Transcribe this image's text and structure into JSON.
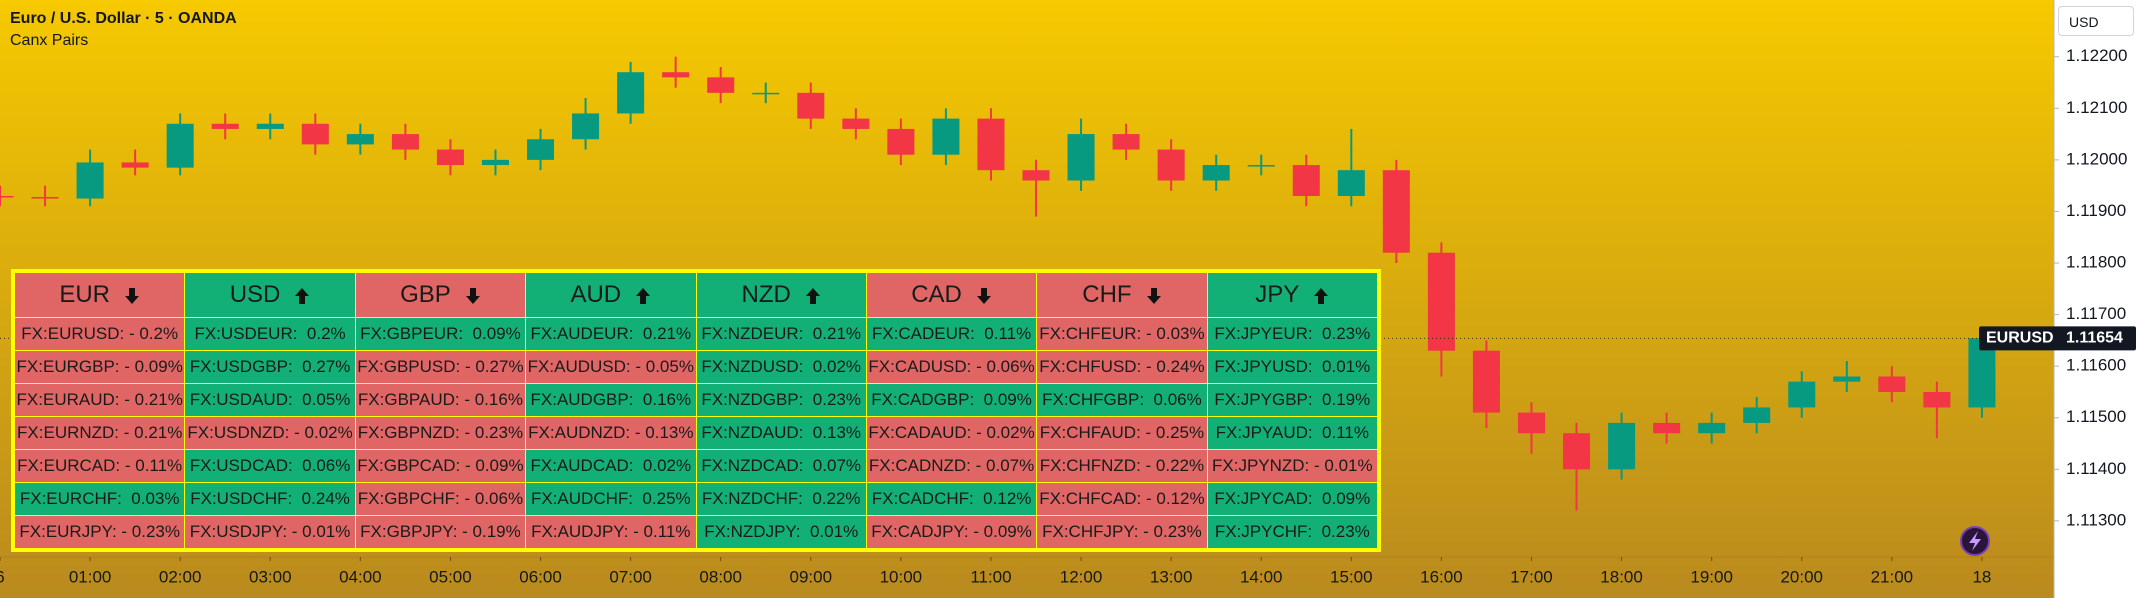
{
  "header": {
    "title": "Euro / U.S. Dollar · 5 · OANDA",
    "indicator": "Canx Pairs"
  },
  "currency_button": "USD",
  "chart_data": {
    "type": "candlestick",
    "x": [
      0,
      0.5,
      1,
      1.5,
      2,
      2.5,
      3,
      3.5,
      4,
      4.5,
      5,
      5.5,
      6,
      6.5,
      7,
      7.5,
      8,
      8.5,
      9,
      9.5,
      10,
      10.5,
      11,
      11.5,
      12,
      12.5,
      13,
      13.5,
      14,
      14.5,
      15,
      15.5,
      16,
      16.5,
      17,
      17.5,
      18,
      18.5,
      19,
      19.5,
      20,
      20.5,
      21,
      21.5,
      22
    ],
    "open": [
      1.1193,
      1.11928,
      1.11925,
      1.11995,
      1.11985,
      1.1207,
      1.1206,
      1.1207,
      1.1203,
      1.1205,
      1.1202,
      1.1199,
      1.12,
      1.1204,
      1.1209,
      1.1217,
      1.1216,
      1.1213,
      1.1213,
      1.1208,
      1.1206,
      1.1201,
      1.1208,
      1.1198,
      1.1196,
      1.1205,
      1.1202,
      1.1196,
      1.1199,
      1.1199,
      1.1193,
      1.1198,
      1.1182,
      1.1163,
      1.1151,
      1.1147,
      1.114,
      1.1149,
      1.1147,
      1.1149,
      1.1152,
      1.1157,
      1.1158,
      1.1155,
      1.1152
    ],
    "high": [
      1.1195,
      1.1195,
      1.1202,
      1.1202,
      1.1209,
      1.1209,
      1.1209,
      1.1209,
      1.1207,
      1.1207,
      1.1204,
      1.1202,
      1.1206,
      1.1212,
      1.1219,
      1.122,
      1.1218,
      1.1215,
      1.1215,
      1.121,
      1.1208,
      1.121,
      1.121,
      1.12,
      1.1208,
      1.1207,
      1.1204,
      1.1201,
      1.1201,
      1.1201,
      1.1206,
      1.12,
      1.1184,
      1.1165,
      1.1153,
      1.1149,
      1.1151,
      1.1151,
      1.1151,
      1.1154,
      1.1159,
      1.1161,
      1.116,
      1.1157,
      1.1167
    ],
    "low": [
      1.1191,
      1.1191,
      1.1191,
      1.1197,
      1.1197,
      1.1204,
      1.1204,
      1.1201,
      1.1201,
      1.12,
      1.1197,
      1.1197,
      1.1198,
      1.1202,
      1.1207,
      1.1214,
      1.1211,
      1.1211,
      1.1206,
      1.1204,
      1.1199,
      1.1199,
      1.1196,
      1.1189,
      1.1194,
      1.12,
      1.1194,
      1.1194,
      1.1197,
      1.1191,
      1.1191,
      1.118,
      1.1158,
      1.1148,
      1.1143,
      1.1132,
      1.1138,
      1.1145,
      1.1145,
      1.1147,
      1.115,
      1.1155,
      1.1153,
      1.1146,
      1.115
    ],
    "close": [
      1.11928,
      1.11925,
      1.11995,
      1.11985,
      1.1207,
      1.1206,
      1.1207,
      1.1203,
      1.1205,
      1.1202,
      1.1199,
      1.12,
      1.1204,
      1.1209,
      1.1217,
      1.1216,
      1.1213,
      1.1213,
      1.1208,
      1.1206,
      1.1201,
      1.1208,
      1.1198,
      1.1196,
      1.1205,
      1.1202,
      1.1196,
      1.1199,
      1.1199,
      1.1193,
      1.1198,
      1.1182,
      1.1163,
      1.1151,
      1.1147,
      1.114,
      1.1149,
      1.1147,
      1.1149,
      1.1152,
      1.1157,
      1.1158,
      1.1155,
      1.1152,
      1.11654
    ],
    "up_color": "#089981",
    "down_color": "#f23645",
    "xlim": [
      0,
      22.8
    ],
    "ylim": [
      1.1123,
      1.1231
    ],
    "xticks": [
      {
        "value": 0,
        "label": "6"
      },
      {
        "value": 1,
        "label": "01:00"
      },
      {
        "value": 2,
        "label": "02:00"
      },
      {
        "value": 3,
        "label": "03:00"
      },
      {
        "value": 4,
        "label": "04:00"
      },
      {
        "value": 5,
        "label": "05:00"
      },
      {
        "value": 6,
        "label": "06:00"
      },
      {
        "value": 7,
        "label": "07:00"
      },
      {
        "value": 8,
        "label": "08:00"
      },
      {
        "value": 9,
        "label": "09:00"
      },
      {
        "value": 10,
        "label": "10:00"
      },
      {
        "value": 11,
        "label": "11:00"
      },
      {
        "value": 12,
        "label": "12:00"
      },
      {
        "value": 13,
        "label": "13:00"
      },
      {
        "value": 14,
        "label": "14:00"
      },
      {
        "value": 15,
        "label": "15:00"
      },
      {
        "value": 16,
        "label": "16:00"
      },
      {
        "value": 17,
        "label": "17:00"
      },
      {
        "value": 18,
        "label": "18:00"
      },
      {
        "value": 19,
        "label": "19:00"
      },
      {
        "value": 20,
        "label": "20:00"
      },
      {
        "value": 21,
        "label": "21:00"
      },
      {
        "value": 22,
        "label": "18"
      }
    ],
    "yticks": [
      {
        "value": 1.122,
        "label": "1.12200"
      },
      {
        "value": 1.121,
        "label": "1.12100"
      },
      {
        "value": 1.12,
        "label": "1.12000"
      },
      {
        "value": 1.119,
        "label": "1.11900"
      },
      {
        "value": 1.118,
        "label": "1.11800"
      },
      {
        "value": 1.117,
        "label": "1.11700"
      },
      {
        "value": 1.116,
        "label": "1.11600"
      },
      {
        "value": 1.115,
        "label": "1.11500"
      },
      {
        "value": 1.114,
        "label": "1.11400"
      },
      {
        "value": 1.113,
        "label": "1.11300"
      }
    ],
    "last_price": {
      "symbol": "EURUSD",
      "value": 1.11654
    }
  },
  "table": {
    "columns": [
      {
        "currency": "EUR",
        "direction": "down",
        "color": "#e06666",
        "cells": [
          {
            "text": "FX:EURUSD: - 0.2%",
            "color": "#e06666"
          },
          {
            "text": "FX:EURGBP: - 0.09%",
            "color": "#e06666"
          },
          {
            "text": "FX:EURAUD: - 0.21%",
            "color": "#e06666"
          },
          {
            "text": "FX:EURNZD: - 0.21%",
            "color": "#e06666"
          },
          {
            "text": "FX:EURCAD: - 0.11%",
            "color": "#e06666"
          },
          {
            "text": "FX:EURCHF:  0.03%",
            "color": "#12b077"
          },
          {
            "text": "FX:EURJPY: - 0.23%",
            "color": "#e06666"
          }
        ]
      },
      {
        "currency": "USD",
        "direction": "up",
        "color": "#12b077",
        "cells": [
          {
            "text": "FX:USDEUR:  0.2%",
            "color": "#12b077"
          },
          {
            "text": "FX:USDGBP:  0.27%",
            "color": "#12b077"
          },
          {
            "text": "FX:USDAUD:  0.05%",
            "color": "#12b077"
          },
          {
            "text": "FX:USDNZD: - 0.02%",
            "color": "#e06666"
          },
          {
            "text": "FX:USDCAD:  0.06%",
            "color": "#12b077"
          },
          {
            "text": "FX:USDCHF:  0.24%",
            "color": "#12b077"
          },
          {
            "text": "FX:USDJPY: - 0.01%",
            "color": "#e06666"
          }
        ]
      },
      {
        "currency": "GBP",
        "direction": "down",
        "color": "#e06666",
        "cells": [
          {
            "text": "FX:GBPEUR:  0.09%",
            "color": "#12b077"
          },
          {
            "text": "FX:GBPUSD: - 0.27%",
            "color": "#e06666"
          },
          {
            "text": "FX:GBPAUD: - 0.16%",
            "color": "#e06666"
          },
          {
            "text": "FX:GBPNZD: - 0.23%",
            "color": "#e06666"
          },
          {
            "text": "FX:GBPCAD: - 0.09%",
            "color": "#e06666"
          },
          {
            "text": "FX:GBPCHF: - 0.06%",
            "color": "#e06666"
          },
          {
            "text": "FX:GBPJPY: - 0.19%",
            "color": "#e06666"
          }
        ]
      },
      {
        "currency": "AUD",
        "direction": "up",
        "color": "#12b077",
        "cells": [
          {
            "text": "FX:AUDEUR:  0.21%",
            "color": "#12b077"
          },
          {
            "text": "FX:AUDUSD: - 0.05%",
            "color": "#e06666"
          },
          {
            "text": "FX:AUDGBP:  0.16%",
            "color": "#12b077"
          },
          {
            "text": "FX:AUDNZD: - 0.13%",
            "color": "#e06666"
          },
          {
            "text": "FX:AUDCAD:  0.02%",
            "color": "#12b077"
          },
          {
            "text": "FX:AUDCHF:  0.25%",
            "color": "#12b077"
          },
          {
            "text": "FX:AUDJPY: - 0.11%",
            "color": "#e06666"
          }
        ]
      },
      {
        "currency": "NZD",
        "direction": "up",
        "color": "#12b077",
        "cells": [
          {
            "text": "FX:NZDEUR:  0.21%",
            "color": "#12b077"
          },
          {
            "text": "FX:NZDUSD:  0.02%",
            "color": "#12b077"
          },
          {
            "text": "FX:NZDGBP:  0.23%",
            "color": "#12b077"
          },
          {
            "text": "FX:NZDAUD:  0.13%",
            "color": "#12b077"
          },
          {
            "text": "FX:NZDCAD:  0.07%",
            "color": "#12b077"
          },
          {
            "text": "FX:NZDCHF:  0.22%",
            "color": "#12b077"
          },
          {
            "text": "FX:NZDJPY:  0.01%",
            "color": "#12b077"
          }
        ]
      },
      {
        "currency": "CAD",
        "direction": "down",
        "color": "#e06666",
        "cells": [
          {
            "text": "FX:CADEUR:  0.11%",
            "color": "#12b077"
          },
          {
            "text": "FX:CADUSD: - 0.06%",
            "color": "#e06666"
          },
          {
            "text": "FX:CADGBP:  0.09%",
            "color": "#12b077"
          },
          {
            "text": "FX:CADAUD: - 0.02%",
            "color": "#e06666"
          },
          {
            "text": "FX:CADNZD: - 0.07%",
            "color": "#e06666"
          },
          {
            "text": "FX:CADCHF:  0.12%",
            "color": "#12b077"
          },
          {
            "text": "FX:CADJPY: - 0.09%",
            "color": "#e06666"
          }
        ]
      },
      {
        "currency": "CHF",
        "direction": "down",
        "color": "#e06666",
        "cells": [
          {
            "text": "FX:CHFEUR: - 0.03%",
            "color": "#e06666"
          },
          {
            "text": "FX:CHFUSD: - 0.24%",
            "color": "#e06666"
          },
          {
            "text": "FX:CHFGBP:  0.06%",
            "color": "#12b077"
          },
          {
            "text": "FX:CHFAUD: - 0.25%",
            "color": "#e06666"
          },
          {
            "text": "FX:CHFNZD: - 0.22%",
            "color": "#e06666"
          },
          {
            "text": "FX:CHFCAD: - 0.12%",
            "color": "#e06666"
          },
          {
            "text": "FX:CHFJPY: - 0.23%",
            "color": "#e06666"
          }
        ]
      },
      {
        "currency": "JPY",
        "direction": "up",
        "color": "#12b077",
        "cells": [
          {
            "text": "FX:JPYEUR:  0.23%",
            "color": "#12b077"
          },
          {
            "text": "FX:JPYUSD:  0.01%",
            "color": "#12b077"
          },
          {
            "text": "FX:JPYGBP:  0.19%",
            "color": "#12b077"
          },
          {
            "text": "FX:JPYAUD:  0.11%",
            "color": "#12b077"
          },
          {
            "text": "FX:JPYNZD: - 0.01%",
            "color": "#e06666"
          },
          {
            "text": "FX:JPYCAD:  0.09%",
            "color": "#12b077"
          },
          {
            "text": "FX:JPYCHF:  0.23%",
            "color": "#12b077"
          }
        ]
      }
    ]
  }
}
